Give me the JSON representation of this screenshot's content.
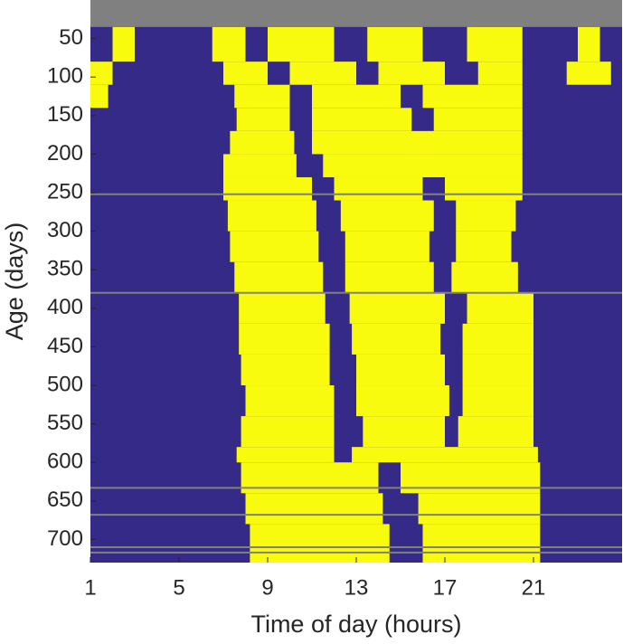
{
  "chart_data": {
    "type": "actogram",
    "xlabel": "Time of day (hours)",
    "ylabel": "Age (days)",
    "xlim": [
      1,
      25
    ],
    "ylim": [
      730,
      0
    ],
    "xticks": [
      1,
      5,
      9,
      13,
      17,
      21
    ],
    "yticks": [
      50,
      100,
      150,
      200,
      250,
      300,
      350,
      400,
      450,
      500,
      550,
      600,
      650,
      700
    ],
    "background_color": "#352a87",
    "active_color": "#f9fb0e",
    "missing_color": "#808080",
    "missing_range": [
      0,
      35
    ],
    "missing_days": [
      252,
      380,
      633,
      668,
      710,
      717
    ],
    "rows": [
      {
        "age": 35,
        "intervals": [
          [
            2,
            3
          ],
          [
            6.5,
            8
          ],
          [
            9,
            12
          ],
          [
            13.5,
            16
          ],
          [
            18,
            20.5
          ],
          [
            23,
            24
          ]
        ]
      },
      {
        "age": 80,
        "intervals": [
          [
            1,
            2
          ],
          [
            7,
            9
          ],
          [
            10,
            13
          ],
          [
            14,
            17
          ],
          [
            18.5,
            20.5
          ],
          [
            22.5,
            24.5
          ]
        ]
      },
      {
        "age": 110,
        "intervals": [
          [
            1,
            1.8
          ],
          [
            7.5,
            10
          ],
          [
            11,
            15
          ],
          [
            16,
            20.5
          ]
        ]
      },
      {
        "age": 140,
        "intervals": [
          [
            7.6,
            10
          ],
          [
            11,
            15.5
          ],
          [
            16.5,
            20.5
          ]
        ]
      },
      {
        "age": 170,
        "intervals": [
          [
            7.3,
            10.2
          ],
          [
            11,
            20.5
          ]
        ]
      },
      {
        "age": 200,
        "intervals": [
          [
            7,
            10.3
          ],
          [
            11.5,
            20.5
          ]
        ]
      },
      {
        "age": 230,
        "intervals": [
          [
            7,
            11
          ],
          [
            12,
            16
          ],
          [
            17,
            20.5
          ]
        ]
      },
      {
        "age": 260,
        "intervals": [
          [
            7.2,
            11.2
          ],
          [
            12.3,
            16.5
          ],
          [
            17.5,
            20.2
          ]
        ]
      },
      {
        "age": 300,
        "intervals": [
          [
            7.3,
            11.3
          ],
          [
            12.5,
            16.3
          ],
          [
            17.5,
            20
          ]
        ]
      },
      {
        "age": 340,
        "intervals": [
          [
            7.5,
            11.5
          ],
          [
            12.5,
            16.5
          ],
          [
            17.3,
            20.3
          ]
        ]
      },
      {
        "age": 380,
        "intervals": [
          [
            7.7,
            11.6
          ],
          [
            12.7,
            17
          ],
          [
            18,
            21
          ]
        ]
      },
      {
        "age": 420,
        "intervals": [
          [
            7.7,
            11.8
          ],
          [
            12.8,
            16.8
          ],
          [
            17.8,
            21
          ]
        ]
      },
      {
        "age": 460,
        "intervals": [
          [
            7.8,
            11.8
          ],
          [
            13,
            17
          ],
          [
            17.8,
            21
          ]
        ]
      },
      {
        "age": 500,
        "intervals": [
          [
            8,
            12
          ],
          [
            13,
            17.2
          ],
          [
            17.8,
            21
          ]
        ]
      },
      {
        "age": 540,
        "intervals": [
          [
            7.8,
            12
          ],
          [
            13.3,
            17
          ],
          [
            17.6,
            21
          ]
        ]
      },
      {
        "age": 580,
        "intervals": [
          [
            7.6,
            12
          ],
          [
            12.8,
            21.2
          ]
        ]
      },
      {
        "age": 600,
        "intervals": [
          [
            7.8,
            14
          ],
          [
            15,
            21.3
          ]
        ]
      },
      {
        "age": 640,
        "intervals": [
          [
            8,
            14.2
          ],
          [
            15.8,
            21.3
          ]
        ]
      },
      {
        "age": 680,
        "intervals": [
          [
            8.2,
            14.5
          ],
          [
            16,
            21.3
          ]
        ]
      }
    ]
  }
}
